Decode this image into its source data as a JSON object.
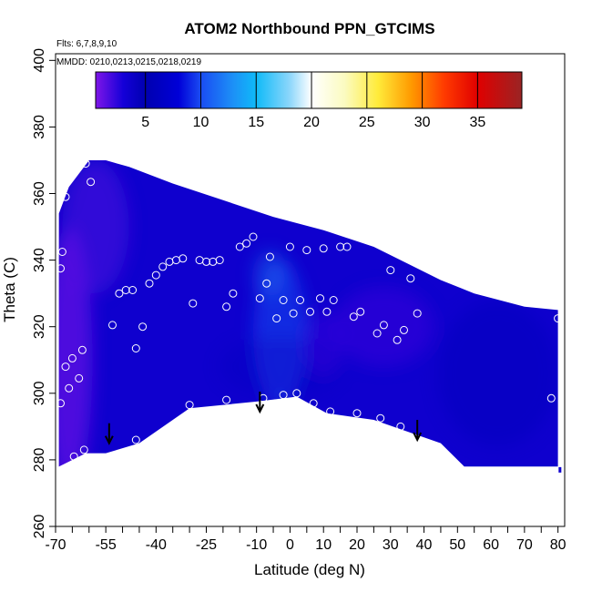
{
  "chart_data": {
    "type": "heatmap",
    "title": "ATOM2 Northbound PPN_GTCIMS",
    "annotations": [
      "Flts: 6,7,8,9,10",
      "MMDD: 0210,0213,0215,0218,0219"
    ],
    "xlabel": "Latitude (deg N)",
    "ylabel": "Theta (C)",
    "xlim": [
      -70,
      82
    ],
    "ylim": [
      260,
      402
    ],
    "x_ticks": [
      -70,
      -55,
      -40,
      -25,
      -10,
      0,
      10,
      20,
      30,
      40,
      50,
      60,
      70,
      80
    ],
    "x_tick_labels": [
      "-70",
      "-55",
      "-40",
      "-25",
      "-10",
      "0",
      "10",
      "20",
      "30",
      "40",
      "50",
      "60",
      "70",
      "80"
    ],
    "x_minor_ticks": [
      -65,
      -60,
      -50,
      -45,
      -35,
      -30,
      -20,
      -15,
      -5,
      5,
      15,
      25,
      35,
      45,
      55,
      65,
      75
    ],
    "y_ticks": [
      260,
      280,
      300,
      320,
      340,
      360,
      380,
      400
    ],
    "y_tick_labels": [
      "260",
      "280",
      "300",
      "320",
      "340",
      "360",
      "380",
      "400"
    ],
    "colorbar": {
      "range": [
        0.5,
        39
      ],
      "ticks": [
        5,
        10,
        15,
        20,
        25,
        30,
        35
      ],
      "tick_labels": [
        "5",
        "10",
        "15",
        "20",
        "25",
        "30",
        "35"
      ],
      "stops": [
        {
          "v": 0.5,
          "color": "#7f16e8"
        },
        {
          "v": 3,
          "color": "#1400d8"
        },
        {
          "v": 5,
          "color": "#0000b0"
        },
        {
          "v": 8,
          "color": "#0000d8"
        },
        {
          "v": 10,
          "color": "#1a4cf2"
        },
        {
          "v": 13,
          "color": "#1c92f7"
        },
        {
          "v": 15,
          "color": "#0fbaf8"
        },
        {
          "v": 18,
          "color": "#8bd6fb"
        },
        {
          "v": 20,
          "color": "#ffffff"
        },
        {
          "v": 23,
          "color": "#fbfbc0"
        },
        {
          "v": 26,
          "color": "#ffeb3a"
        },
        {
          "v": 29,
          "color": "#ff9a00"
        },
        {
          "v": 32,
          "color": "#ff3a00"
        },
        {
          "v": 35,
          "color": "#e00000"
        },
        {
          "v": 39,
          "color": "#9a2424"
        }
      ]
    },
    "field_polygon": [
      [
        -69,
        278
      ],
      [
        -67,
        279
      ],
      [
        -61,
        282
      ],
      [
        -55,
        282
      ],
      [
        -45,
        285
      ],
      [
        -30,
        295.5
      ],
      [
        -10,
        297.5
      ],
      [
        2,
        299
      ],
      [
        11,
        294
      ],
      [
        25,
        292
      ],
      [
        45,
        285
      ],
      [
        52,
        278
      ],
      [
        80,
        278
      ],
      [
        80,
        325
      ],
      [
        70,
        326
      ],
      [
        55,
        330
      ],
      [
        45,
        334
      ],
      [
        35,
        339
      ],
      [
        25,
        344
      ],
      [
        10,
        349
      ],
      [
        -5,
        353
      ],
      [
        -20,
        358
      ],
      [
        -35,
        363
      ],
      [
        -48,
        368
      ],
      [
        -55,
        370
      ],
      [
        -60,
        370
      ],
      [
        -66,
        362
      ],
      [
        -69,
        354
      ]
    ],
    "field_blobs": [
      {
        "x": -3,
        "y": 318,
        "rx": 8,
        "ry": 22,
        "value": 10,
        "opacity": 0.55
      },
      {
        "x": -6,
        "y": 336,
        "rx": 5,
        "ry": 7,
        "value": 12,
        "opacity": 0.35
      },
      {
        "x": -3,
        "y": 308,
        "rx": 18,
        "ry": 9,
        "value": 6,
        "opacity": 0.3
      },
      {
        "x": 28,
        "y": 320,
        "rx": 15,
        "ry": 12,
        "value": 2,
        "opacity": 0.45
      },
      {
        "x": 10,
        "y": 315,
        "rx": 6,
        "ry": 10,
        "value": 2,
        "opacity": 0.4
      },
      {
        "x": -66,
        "y": 310,
        "rx": 7,
        "ry": 40,
        "value": 1,
        "opacity": 0.7
      },
      {
        "x": -58,
        "y": 350,
        "rx": 10,
        "ry": 20,
        "value": 1.5,
        "opacity": 0.5
      },
      {
        "x": 62,
        "y": 306,
        "rx": 18,
        "ry": 22,
        "value": 4.5,
        "opacity": 0.45
      }
    ],
    "field_base_value": 3.5,
    "points": [
      [
        -68,
        342.5
      ],
      [
        -68.5,
        337.5
      ],
      [
        -68.5,
        297
      ],
      [
        -67,
        308
      ],
      [
        -66,
        301.5
      ],
      [
        -65,
        310.5
      ],
      [
        -64.5,
        281
      ],
      [
        -63,
        304.5
      ],
      [
        -62,
        313
      ],
      [
        -61.5,
        283
      ],
      [
        -59.5,
        363.5
      ],
      [
        -67,
        359
      ],
      [
        -61,
        369
      ],
      [
        -53,
        320.5
      ],
      [
        -51,
        330
      ],
      [
        -49,
        331
      ],
      [
        -47,
        331
      ],
      [
        -46,
        313.5
      ],
      [
        -44,
        320
      ],
      [
        -42,
        333
      ],
      [
        -40,
        335.5
      ],
      [
        -38,
        338
      ],
      [
        -36,
        339.5
      ],
      [
        -34,
        340
      ],
      [
        -32,
        340.5
      ],
      [
        -29,
        327
      ],
      [
        -27,
        340
      ],
      [
        -25,
        339.5
      ],
      [
        -23,
        339.5
      ],
      [
        -21,
        340
      ],
      [
        -19,
        326
      ],
      [
        -17,
        330
      ],
      [
        -15,
        344
      ],
      [
        -13,
        345
      ],
      [
        -11,
        347
      ],
      [
        -9,
        328.5
      ],
      [
        -7,
        333
      ],
      [
        -6,
        341
      ],
      [
        -4,
        322.5
      ],
      [
        -2,
        328
      ],
      [
        0,
        344
      ],
      [
        1,
        324
      ],
      [
        3,
        328
      ],
      [
        5,
        343
      ],
      [
        6,
        324.5
      ],
      [
        7,
        297
      ],
      [
        9,
        328.5
      ],
      [
        10,
        343.5
      ],
      [
        11,
        324.5
      ],
      [
        13,
        328
      ],
      [
        15,
        344
      ],
      [
        17,
        344
      ],
      [
        19,
        323
      ],
      [
        21,
        324.5
      ],
      [
        25,
        346.5
      ],
      [
        26,
        318
      ],
      [
        28,
        320.5
      ],
      [
        30,
        337
      ],
      [
        32,
        316
      ],
      [
        34,
        319
      ],
      [
        36,
        334.5
      ],
      [
        38,
        324
      ],
      [
        78,
        298.5
      ],
      [
        80,
        322.5
      ],
      [
        -46,
        286
      ],
      [
        -30,
        296.5
      ],
      [
        -19,
        298
      ],
      [
        -8,
        298.5
      ],
      [
        -2,
        299.5
      ],
      [
        2,
        300
      ],
      [
        12,
        294.5
      ],
      [
        20,
        294
      ],
      [
        27,
        292.5
      ],
      [
        33,
        290
      ]
    ],
    "arrows": [
      [
        -54,
        291
      ],
      [
        -9,
        300.5
      ],
      [
        38,
        292
      ]
    ],
    "edge_mark": [
      81,
      277
    ]
  }
}
